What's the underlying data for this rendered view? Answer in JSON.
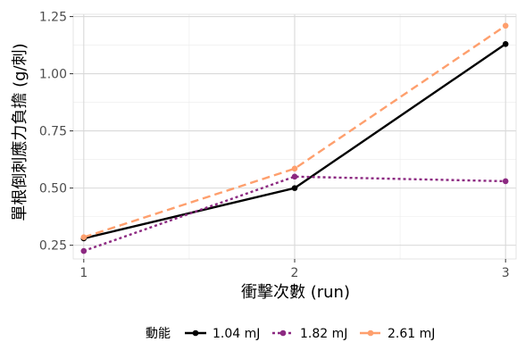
{
  "chart_data": {
    "type": "line",
    "title": "",
    "xlabel": "衝擊次數 (run)",
    "ylabel": "單根倒刺應力負擔 (g/刺)",
    "x": [
      1,
      2,
      3
    ],
    "xlim": [
      0.95,
      3.05
    ],
    "ylim": [
      0.19,
      1.26
    ],
    "x_ticks": [
      1,
      2,
      3
    ],
    "y_ticks": [
      0.25,
      0.5,
      0.75,
      1.0,
      1.25
    ],
    "y_tick_labels": [
      "0.25",
      "0.50",
      "0.75",
      "1.00",
      "1.25"
    ],
    "grid": true,
    "legend": {
      "title": "動能",
      "position": "bottom"
    },
    "series": [
      {
        "name": "1.04 mJ",
        "values": [
          0.28,
          0.5,
          1.13
        ],
        "color": "#000000",
        "dash": "solid"
      },
      {
        "name": "1.82 mJ",
        "values": [
          0.225,
          0.55,
          0.53
        ],
        "color": "#8c2981",
        "dash": "dotted"
      },
      {
        "name": "2.61 mJ",
        "values": [
          0.285,
          0.585,
          1.21
        ],
        "color": "#fe9f6d",
        "dash": "dashed"
      }
    ]
  }
}
